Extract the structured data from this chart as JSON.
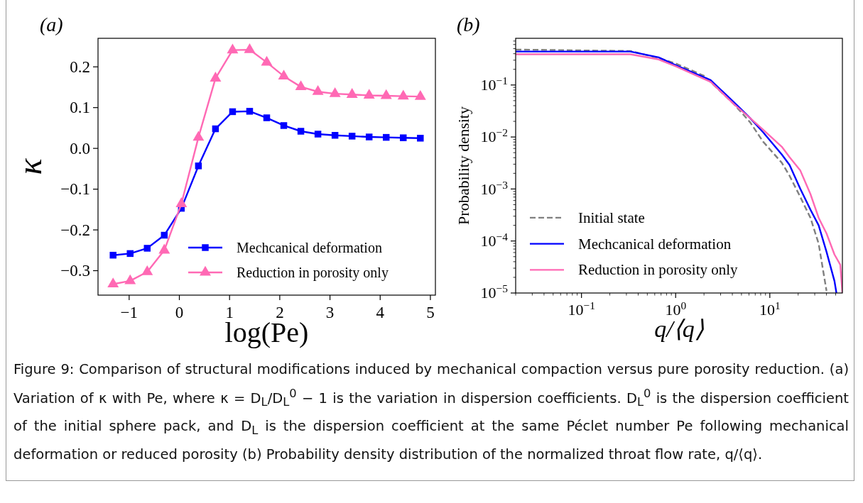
{
  "chart_data": [
    {
      "type": "line",
      "title": "(a)",
      "xlabel": "log(Pe)",
      "ylabel": "κ",
      "xlim": [
        -1.62,
        5.1
      ],
      "ylim": [
        -0.36,
        0.27
      ],
      "x": [
        -1.32,
        -0.98,
        -0.64,
        -0.3,
        0.04,
        0.38,
        0.72,
        1.06,
        1.4,
        1.74,
        2.08,
        2.42,
        2.76,
        3.1,
        3.44,
        3.78,
        4.12,
        4.46,
        4.8
      ],
      "xticks": [
        {
          "value": -1,
          "label": "−1"
        },
        0,
        1,
        2,
        3,
        4,
        5
      ],
      "yticks": [
        {
          "value": -0.3,
          "label": "−0.3"
        },
        {
          "value": -0.2,
          "label": "−0.2"
        },
        {
          "value": -0.1,
          "label": "−0.1"
        },
        {
          "value": 0,
          "label": "0.0"
        },
        0.1,
        0.2
      ],
      "legend": "bottom right",
      "grid": false,
      "series": [
        {
          "name": "Mechcanical deformation",
          "color": "#0000ff",
          "marker": "square",
          "values": [
            -0.262,
            -0.258,
            -0.245,
            -0.213,
            -0.147,
            -0.043,
            0.048,
            0.09,
            0.091,
            0.075,
            0.056,
            0.042,
            0.035,
            0.032,
            0.03,
            0.028,
            0.027,
            0.026,
            0.025
          ]
        },
        {
          "name": "Reduction in porosity only",
          "color": "#ff69b4",
          "marker": "triangle",
          "values": [
            -0.333,
            -0.325,
            -0.303,
            -0.25,
            -0.136,
            0.027,
            0.172,
            0.241,
            0.242,
            0.211,
            0.177,
            0.151,
            0.139,
            0.134,
            0.132,
            0.13,
            0.129,
            0.128,
            0.127
          ]
        }
      ],
      "annotations": [
        "Figure 9: Comparison of structural modifications induced by mechanical compaction versus pure porosity reduction. (a) Variation of κ with Pe, where κ = D$_{L}$/D$_{L}$$^{0}$ − 1 is the variation in dispersion coefficients. D$_{L}$$^{0}$ is the dispersion coefficient of the initial sphere pack, and D$_{L}$ is the dispersion coefficient at the same Péclet number Pe following mechanical deformation or reduced porosity (b) Probability density distribution of the normalized throat flow rate, q/⟨q⟩."
      ]
    },
    {
      "type": "line",
      "title": "(b)",
      "xlabel": "q/⟨q⟩",
      "ylabel": "Probability density",
      "log": "xy",
      "xlim": [
        0.02,
        59
      ],
      "ylim": [
        1e-05,
        0.79
      ],
      "xticks": [
        {
          "value": 0.1,
          "label": "10$^{−1}$"
        },
        {
          "value": 1,
          "label": "10$^{0}$"
        },
        {
          "value": 10,
          "label": "10$^{1}$"
        },
        {
          "value": 0.02,
          "label": null
        },
        {
          "value": 0.03,
          "label": null
        },
        {
          "value": 0.04,
          "label": null
        },
        {
          "value": 0.05,
          "label": null
        },
        {
          "value": 0.06,
          "label": null
        },
        {
          "value": 0.07,
          "label": null
        },
        {
          "value": 0.08,
          "label": null
        },
        {
          "value": 0.09,
          "label": null
        },
        {
          "value": 0.2,
          "label": null
        },
        {
          "value": 0.3,
          "label": null
        },
        {
          "value": 0.4,
          "label": null
        },
        {
          "value": 0.5,
          "label": null
        },
        {
          "value": 0.6,
          "label": null
        },
        {
          "value": 0.7,
          "label": null
        },
        {
          "value": 0.8,
          "label": null
        },
        {
          "value": 0.9,
          "label": null
        },
        {
          "value": 2,
          "label": null
        },
        {
          "value": 3,
          "label": null
        },
        {
          "value": 4,
          "label": null
        },
        {
          "value": 5,
          "label": null
        },
        {
          "value": 6,
          "label": null
        },
        {
          "value": 7,
          "label": null
        },
        {
          "value": 8,
          "label": null
        },
        {
          "value": 9,
          "label": null
        },
        {
          "value": 20,
          "label": null
        },
        {
          "value": 30,
          "label": null
        },
        {
          "value": 40,
          "label": null
        },
        {
          "value": 50,
          "label": null
        }
      ],
      "yticks": [
        {
          "value": 1e-05,
          "label": "10$^{−5}$"
        },
        {
          "value": 0.0001,
          "label": "10$^{−4}$"
        },
        {
          "value": 0.001,
          "label": "10$^{−3}$"
        },
        {
          "value": 0.01,
          "label": "10$^{−2}$"
        },
        {
          "value": 0.1,
          "label": "10$^{−1}$"
        },
        {
          "value": 2e-05,
          "label": null
        },
        {
          "value": 3e-05,
          "label": null
        },
        {
          "value": 4e-05,
          "label": null
        },
        {
          "value": 5e-05,
          "label": null
        },
        {
          "value": 6e-05,
          "label": null
        },
        {
          "value": 7e-05,
          "label": null
        },
        {
          "value": 8e-05,
          "label": null
        },
        {
          "value": 9e-05,
          "label": null
        },
        {
          "value": 0.0002,
          "label": null
        },
        {
          "value": 0.0003,
          "label": null
        },
        {
          "value": 0.0004,
          "label": null
        },
        {
          "value": 0.0005,
          "label": null
        },
        {
          "value": 0.0006,
          "label": null
        },
        {
          "value": 0.0007,
          "label": null
        },
        {
          "value": 0.0008,
          "label": null
        },
        {
          "value": 0.0009,
          "label": null
        },
        {
          "value": 0.002,
          "label": null
        },
        {
          "value": 0.003,
          "label": null
        },
        {
          "value": 0.004,
          "label": null
        },
        {
          "value": 0.005,
          "label": null
        },
        {
          "value": 0.006,
          "label": null
        },
        {
          "value": 0.007,
          "label": null
        },
        {
          "value": 0.008,
          "label": null
        },
        {
          "value": 0.009,
          "label": null
        },
        {
          "value": 0.02,
          "label": null
        },
        {
          "value": 0.03,
          "label": null
        },
        {
          "value": 0.04,
          "label": null
        },
        {
          "value": 0.05,
          "label": null
        },
        {
          "value": 0.06,
          "label": null
        },
        {
          "value": 0.07,
          "label": null
        },
        {
          "value": 0.08,
          "label": null
        },
        {
          "value": 0.09,
          "label": null
        },
        {
          "value": 0.2,
          "label": null
        },
        {
          "value": 0.3,
          "label": null
        },
        {
          "value": 0.4,
          "label": null
        },
        {
          "value": 0.5,
          "label": null
        },
        {
          "value": 0.6,
          "label": null
        },
        {
          "value": 0.7,
          "label": null
        }
      ],
      "legend": "bottom left",
      "grid": false,
      "marker": "none",
      "series": [
        {
          "name": "Initial state",
          "color": "#808080",
          "line_style": "dashed",
          "x": [
            0.02,
            0.33,
            0.66,
            1,
            2,
            4.2,
            6.2,
            8.5,
            13.4,
            16.2,
            21,
            27,
            33,
            40
          ],
          "values": [
            0.48,
            0.45,
            0.33,
            0.26,
            0.15,
            0.042,
            0.019,
            0.0081,
            0.0032,
            0.0018,
            0.00071,
            0.00028,
            8.9e-05,
            1.1e-05
          ]
        },
        {
          "name": "Mechcanical deformation",
          "color": "#0000ff",
          "line_style": "solid",
          "x": [
            0.02,
            0.33,
            0.66,
            1,
            2.35,
            4.2,
            6.2,
            8.5,
            13.4,
            16.2,
            21,
            27,
            33,
            40,
            48.6,
            51
          ],
          "values": [
            0.44,
            0.44,
            0.34,
            0.24,
            0.124,
            0.046,
            0.023,
            0.0123,
            0.0046,
            0.0029,
            0.00102,
            0.0004,
            0.0002,
            6.2e-05,
            1.7e-05,
            1e-05
          ]
        },
        {
          "name": "Reduction in porosity only",
          "color": "#ff69b4",
          "line_style": "solid",
          "x": [
            0.02,
            0.33,
            0.66,
            1,
            2.35,
            4.2,
            6.2,
            8.5,
            13.4,
            16.2,
            21,
            27,
            33,
            40,
            48.6,
            56,
            59
          ],
          "values": [
            0.39,
            0.39,
            0.31,
            0.23,
            0.115,
            0.042,
            0.023,
            0.0138,
            0.0065,
            0.0041,
            0.0023,
            0.0008,
            0.00028,
            0.00014,
            5.5e-05,
            3.5e-05,
            1e-05
          ]
        }
      ]
    }
  ]
}
